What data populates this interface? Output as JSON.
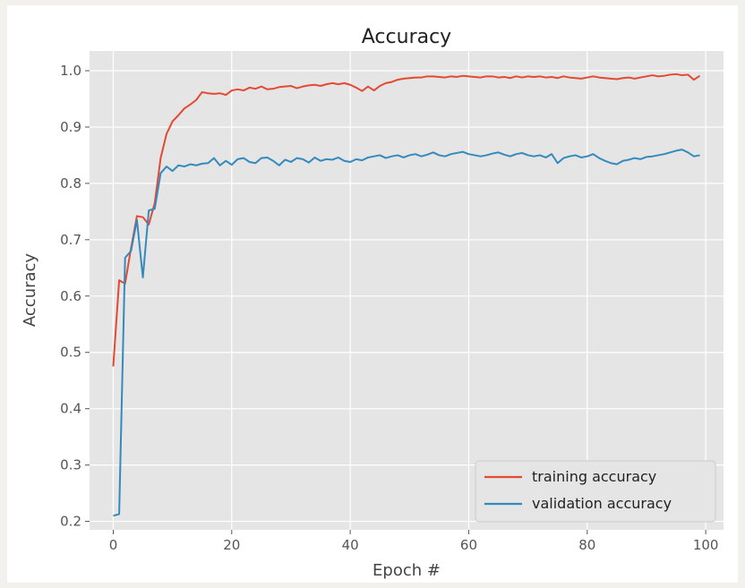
{
  "chart_data": {
    "type": "line",
    "title": "Accuracy",
    "xlabel": "Epoch #",
    "ylabel": "Accuracy",
    "xlim": [
      -4,
      103
    ],
    "ylim": [
      0.185,
      1.035
    ],
    "xticks": [
      0,
      20,
      40,
      60,
      80,
      100
    ],
    "yticks": [
      0.2,
      0.3,
      0.4,
      0.5,
      0.6,
      0.7,
      0.8,
      0.9,
      1.0
    ],
    "ytick_labels": [
      "0.2",
      "0.3",
      "0.4",
      "0.5",
      "0.6",
      "0.7",
      "0.8",
      "0.9",
      "1.0"
    ],
    "xtick_labels": [
      "0",
      "20",
      "40",
      "60",
      "80",
      "100"
    ],
    "grid": true,
    "legend_position": "bottom-right",
    "x": [
      0,
      1,
      2,
      3,
      4,
      5,
      6,
      7,
      8,
      9,
      10,
      11,
      12,
      13,
      14,
      15,
      16,
      17,
      18,
      19,
      20,
      21,
      22,
      23,
      24,
      25,
      26,
      27,
      28,
      29,
      30,
      31,
      32,
      33,
      34,
      35,
      36,
      37,
      38,
      39,
      40,
      41,
      42,
      43,
      44,
      45,
      46,
      47,
      48,
      49,
      50,
      51,
      52,
      53,
      54,
      55,
      56,
      57,
      58,
      59,
      60,
      61,
      62,
      63,
      64,
      65,
      66,
      67,
      68,
      69,
      70,
      71,
      72,
      73,
      74,
      75,
      76,
      77,
      78,
      79,
      80,
      81,
      82,
      83,
      84,
      85,
      86,
      87,
      88,
      89,
      90,
      91,
      92,
      93,
      94,
      95,
      96,
      97,
      98,
      99
    ],
    "series": [
      {
        "name": "training accuracy",
        "color": "#e24a33",
        "values": [
          0.475,
          0.628,
          0.622,
          0.685,
          0.742,
          0.74,
          0.727,
          0.765,
          0.845,
          0.888,
          0.91,
          0.921,
          0.933,
          0.94,
          0.948,
          0.962,
          0.96,
          0.959,
          0.96,
          0.957,
          0.965,
          0.967,
          0.965,
          0.97,
          0.968,
          0.972,
          0.967,
          0.968,
          0.971,
          0.972,
          0.973,
          0.969,
          0.972,
          0.974,
          0.975,
          0.973,
          0.976,
          0.978,
          0.976,
          0.978,
          0.975,
          0.97,
          0.964,
          0.972,
          0.965,
          0.973,
          0.978,
          0.98,
          0.984,
          0.986,
          0.987,
          0.988,
          0.988,
          0.99,
          0.99,
          0.989,
          0.988,
          0.99,
          0.989,
          0.991,
          0.99,
          0.989,
          0.988,
          0.99,
          0.99,
          0.988,
          0.989,
          0.987,
          0.99,
          0.988,
          0.99,
          0.989,
          0.99,
          0.988,
          0.989,
          0.987,
          0.99,
          0.988,
          0.987,
          0.986,
          0.988,
          0.99,
          0.988,
          0.987,
          0.986,
          0.985,
          0.987,
          0.988,
          0.986,
          0.988,
          0.99,
          0.992,
          0.99,
          0.991,
          0.993,
          0.994,
          0.992,
          0.993,
          0.984,
          0.991
        ]
      },
      {
        "name": "validation accuracy",
        "color": "#348abd",
        "values": [
          0.21,
          0.213,
          0.668,
          0.68,
          0.735,
          0.633,
          0.752,
          0.755,
          0.818,
          0.83,
          0.822,
          0.832,
          0.83,
          0.834,
          0.832,
          0.835,
          0.836,
          0.845,
          0.832,
          0.84,
          0.833,
          0.843,
          0.845,
          0.838,
          0.836,
          0.845,
          0.846,
          0.84,
          0.832,
          0.842,
          0.838,
          0.845,
          0.843,
          0.837,
          0.846,
          0.84,
          0.843,
          0.842,
          0.846,
          0.84,
          0.838,
          0.843,
          0.841,
          0.846,
          0.848,
          0.85,
          0.845,
          0.848,
          0.85,
          0.846,
          0.85,
          0.852,
          0.848,
          0.851,
          0.855,
          0.85,
          0.848,
          0.852,
          0.854,
          0.856,
          0.852,
          0.85,
          0.848,
          0.85,
          0.853,
          0.855,
          0.851,
          0.848,
          0.852,
          0.854,
          0.85,
          0.848,
          0.85,
          0.846,
          0.852,
          0.836,
          0.845,
          0.848,
          0.85,
          0.846,
          0.848,
          0.852,
          0.845,
          0.84,
          0.836,
          0.834,
          0.84,
          0.842,
          0.845,
          0.843,
          0.847,
          0.848,
          0.85,
          0.852,
          0.855,
          0.858,
          0.86,
          0.855,
          0.848,
          0.85
        ]
      }
    ]
  }
}
